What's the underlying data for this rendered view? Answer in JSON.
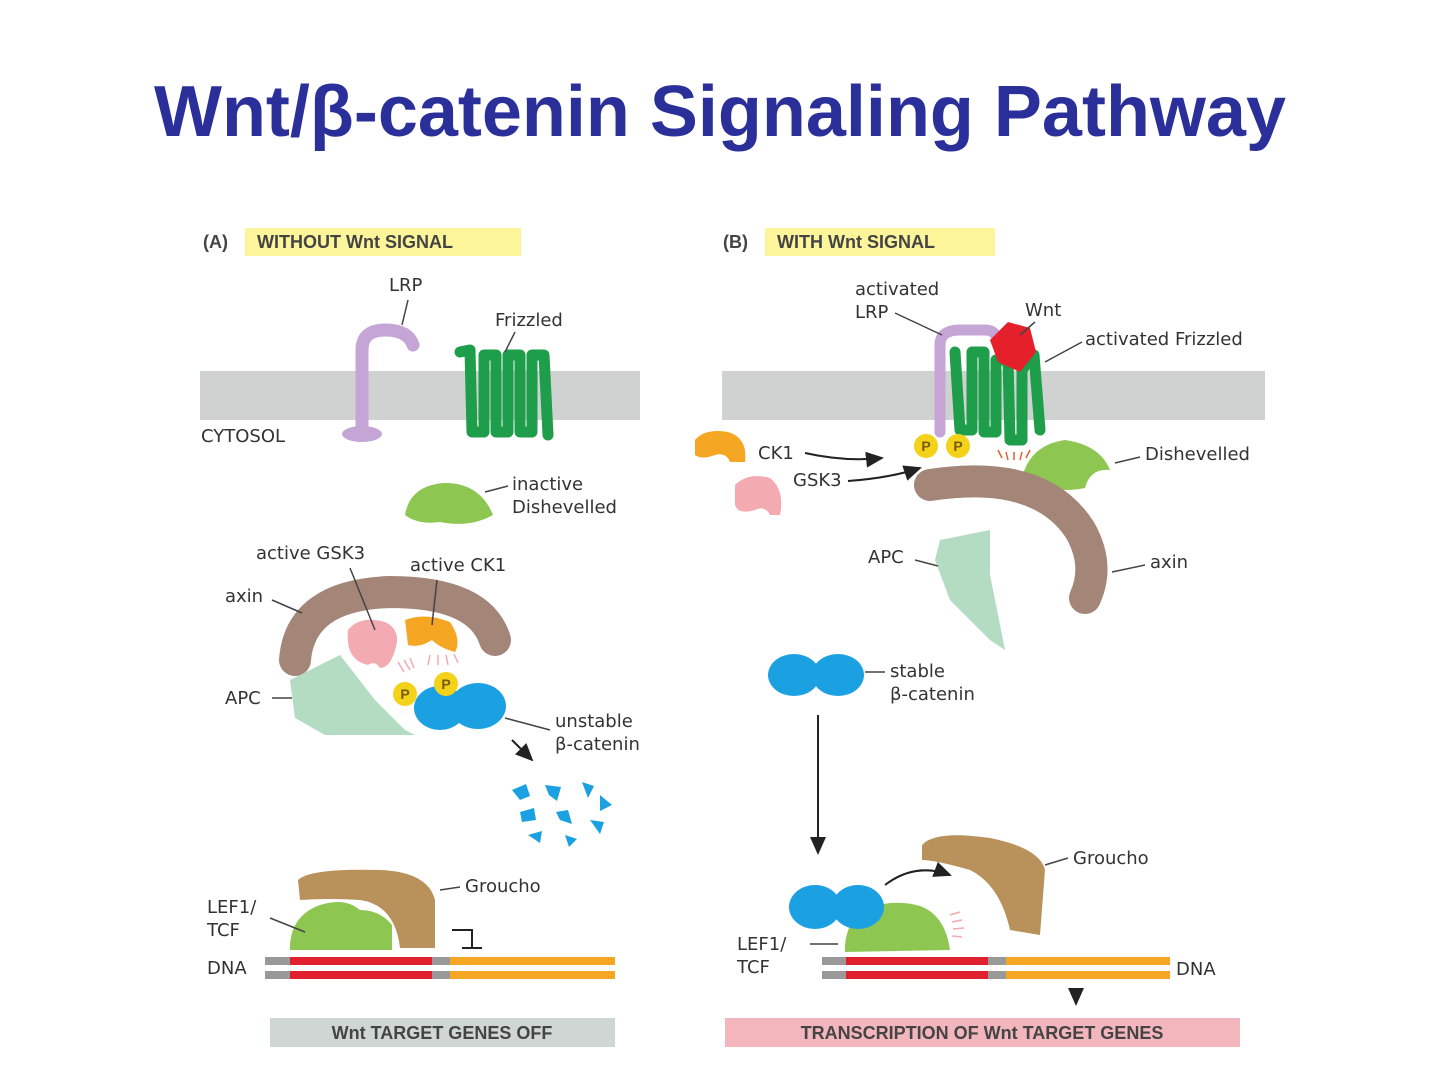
{
  "title": "Wnt/β-catenin Signaling Pathway",
  "panel_a": {
    "letter": "(A)",
    "heading": "WITHOUT Wnt SIGNAL",
    "lrp": "LRP",
    "frizzled": "Frizzled",
    "cytosol": "CYTOSOL",
    "dishevelled_1": "inactive",
    "dishevelled_2": "Dishevelled",
    "gsk3": "active GSK3",
    "ck1": "active CK1",
    "axin": "axin",
    "apc": "APC",
    "p": "P",
    "bcat_1": "unstable",
    "bcat_2": "β-catenin",
    "groucho": "Groucho",
    "lef_1": "LEF1/",
    "lef_2": "TCF",
    "dna": "DNA",
    "result": "Wnt TARGET GENES OFF"
  },
  "panel_b": {
    "letter": "(B)",
    "heading": "WITH Wnt SIGNAL",
    "lrp_1": "activated",
    "lrp_2": "LRP",
    "wnt": "Wnt",
    "frizzled": "activated Frizzled",
    "ck1": "CK1",
    "gsk3": "GSK3",
    "p": "P",
    "dishevelled": "Dishevelled",
    "apc": "APC",
    "axin": "axin",
    "bcat_1": "stable",
    "bcat_2": "β-catenin",
    "groucho": "Groucho",
    "lef_1": "LEF1/",
    "lef_2": "TCF",
    "dna": "DNA",
    "result": "TRANSCRIPTION OF Wnt TARGET GENES"
  },
  "colors": {
    "title": "#2b2f9a",
    "highlight": "#fdf59a",
    "membrane": "#cfd2d1",
    "lrp": "#c4a5d6",
    "frizzled": "#1e9e4a",
    "dishevelled": "#8dc752",
    "axin": "#a38677",
    "gsk3": "#f3aab0",
    "ck1": "#f5a623",
    "apc": "#b3dcc3",
    "beta_catenin": "#1ba1e2",
    "phosphate": "#f4d21a",
    "wnt": "#e5202a",
    "groucho": "#b8925a",
    "dna_red": "#e0202e",
    "dna_orange": "#f5a623",
    "genes_off_box": "#cfd6d3",
    "transcription_box": "#f4b6bd"
  }
}
